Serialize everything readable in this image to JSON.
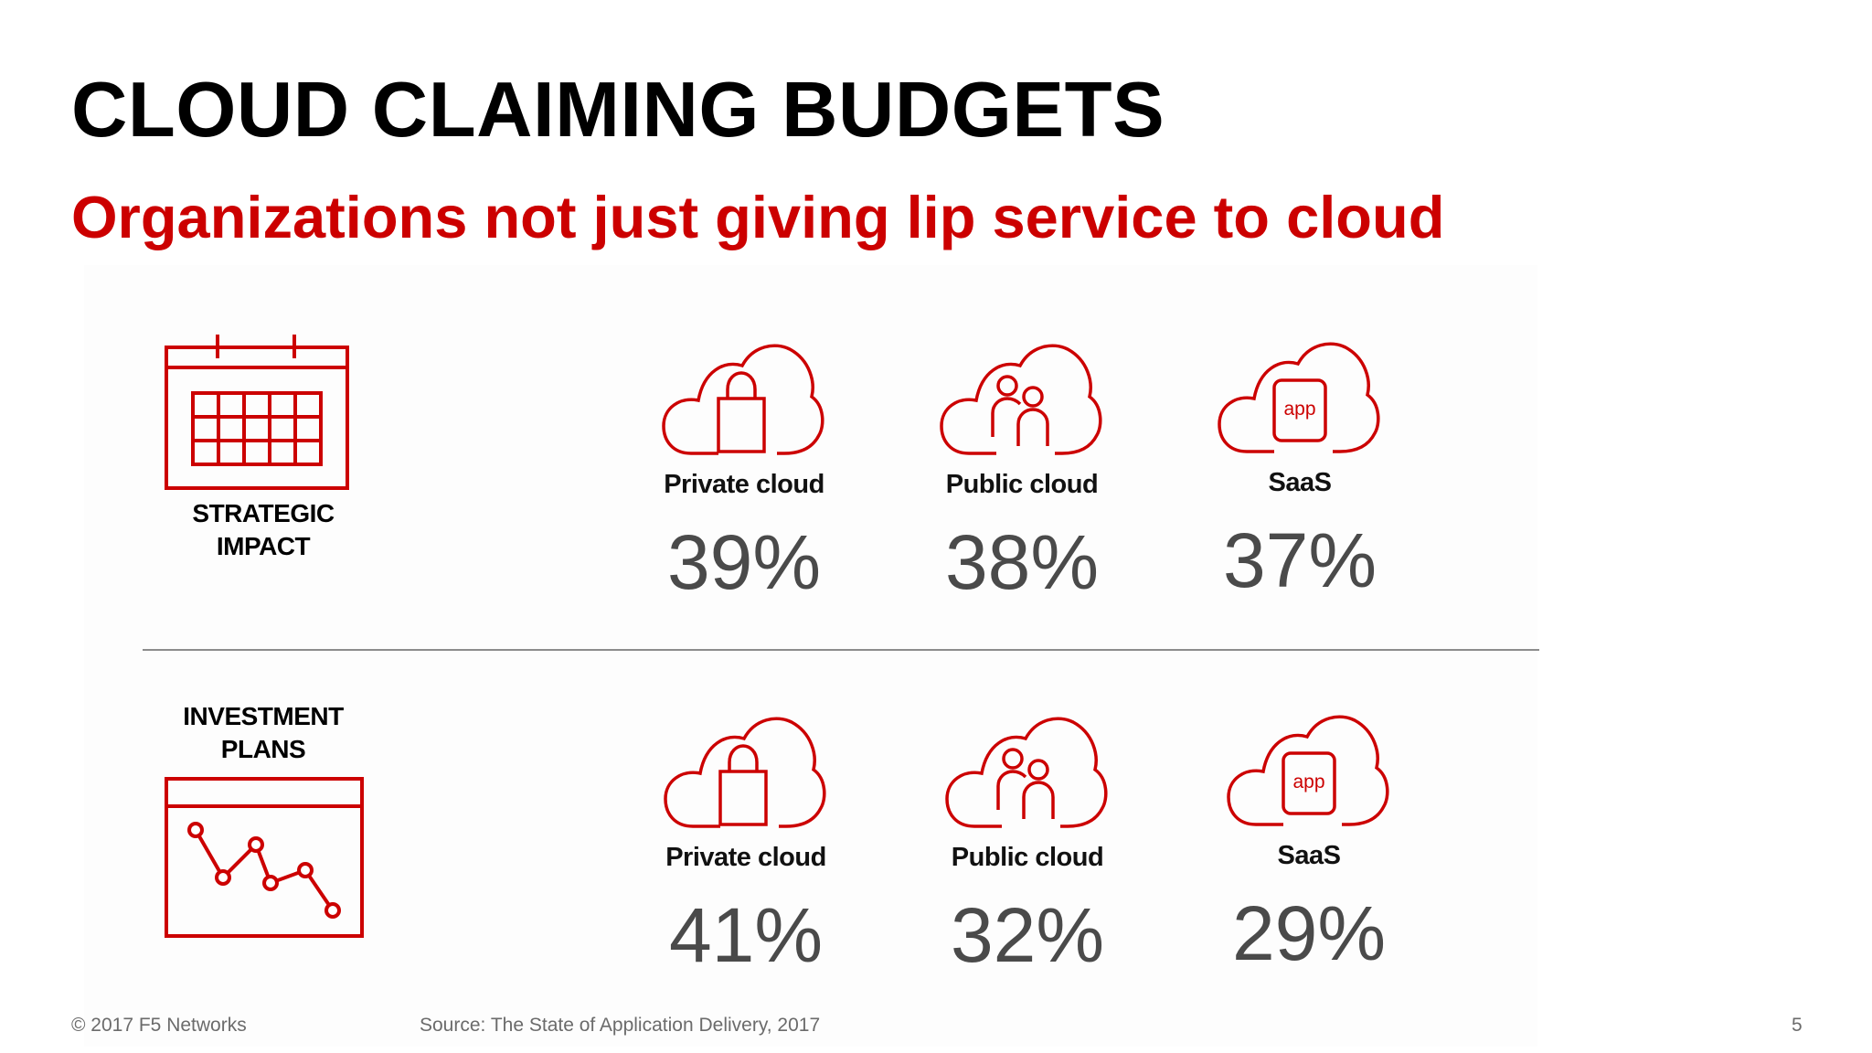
{
  "slide": {
    "title": "CLOUD CLAIMING BUDGETS",
    "subtitle": "Organizations not just giving lip service to cloud"
  },
  "colors": {
    "accent": "#cc0000",
    "title": "#000000",
    "value": "#4a4a4a",
    "footer": "#6b6b6b"
  },
  "sections": [
    {
      "label_line1": "STRATEGIC",
      "label_line2": "IMPACT",
      "icon": "calendar-icon",
      "items": [
        {
          "icon": "private-cloud-lock-icon",
          "label": "Private cloud",
          "value": "39%"
        },
        {
          "icon": "public-cloud-people-icon",
          "label": "Public cloud",
          "value": "38%"
        },
        {
          "icon": "saas-cloud-app-icon",
          "label": "SaaS",
          "value": "37%",
          "icon_text": "app"
        }
      ]
    },
    {
      "label_line1": "INVESTMENT",
      "label_line2": "PLANS",
      "icon": "line-chart-icon",
      "items": [
        {
          "icon": "private-cloud-lock-icon",
          "label": "Private cloud",
          "value": "41%"
        },
        {
          "icon": "public-cloud-people-icon",
          "label": "Public cloud",
          "value": "32%"
        },
        {
          "icon": "saas-cloud-app-icon",
          "label": "SaaS",
          "value": "29%",
          "icon_text": "app"
        }
      ]
    }
  ],
  "footer": {
    "copyright": "© 2017 F5 Networks",
    "source": "Source: The State of Application Delivery, 2017",
    "page_number": "5"
  }
}
